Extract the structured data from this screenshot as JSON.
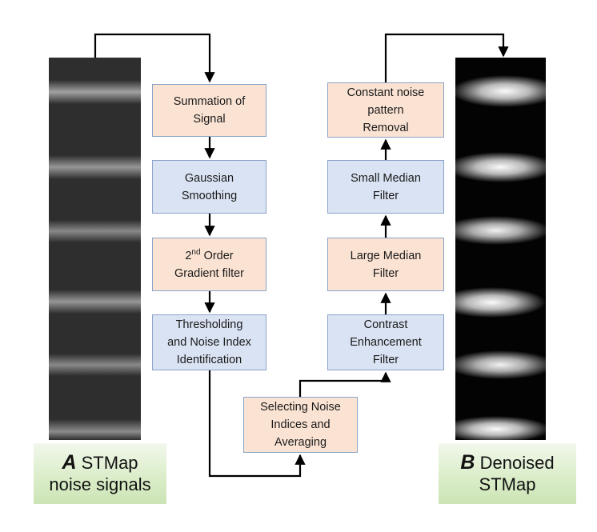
{
  "panel_a": {
    "letter": "A",
    "line1": "STMap",
    "line2": "noise signals"
  },
  "panel_b": {
    "letter": "B",
    "line1": "Denoised",
    "line2": "STMap"
  },
  "left_column": [
    {
      "lines": [
        "Summation of",
        "Signal"
      ],
      "color": "peach"
    },
    {
      "lines": [
        "Gaussian",
        "Smoothing"
      ],
      "color": "blue"
    },
    {
      "lines": [
        "2nd Order",
        "Gradient filter"
      ],
      "color": "peach"
    },
    {
      "lines": [
        "Thresholding",
        "and Noise Index",
        "Identification"
      ],
      "color": "blue"
    }
  ],
  "second_order": {
    "number": "2",
    "superscript": "nd",
    "rest": " Order",
    "line2": "Gradient filter"
  },
  "bottom_box": {
    "lines": [
      "Selecting Noise",
      "Indices and",
      "Averaging"
    ],
    "color": "peach"
  },
  "right_column": [
    {
      "lines": [
        "Contrast",
        "Enhancement",
        "Filter"
      ],
      "color": "blue"
    },
    {
      "lines": [
        "Large Median",
        "Filter"
      ],
      "color": "peach"
    },
    {
      "lines": [
        "Small Median",
        "Filter"
      ],
      "color": "blue"
    },
    {
      "lines": [
        "Constant noise",
        "pattern",
        "Removal"
      ],
      "color": "peach"
    }
  ],
  "colors": {
    "peach": "#fbe3d3",
    "blue": "#dae3f3",
    "box_border": "#8aa3c8",
    "arrow": "#000000",
    "caption_green": "#d9ecc7"
  },
  "stmap_bands": {
    "noisy_background_gray": "#2e2e2e",
    "denoised_background": "#030303",
    "band_count": 6
  }
}
